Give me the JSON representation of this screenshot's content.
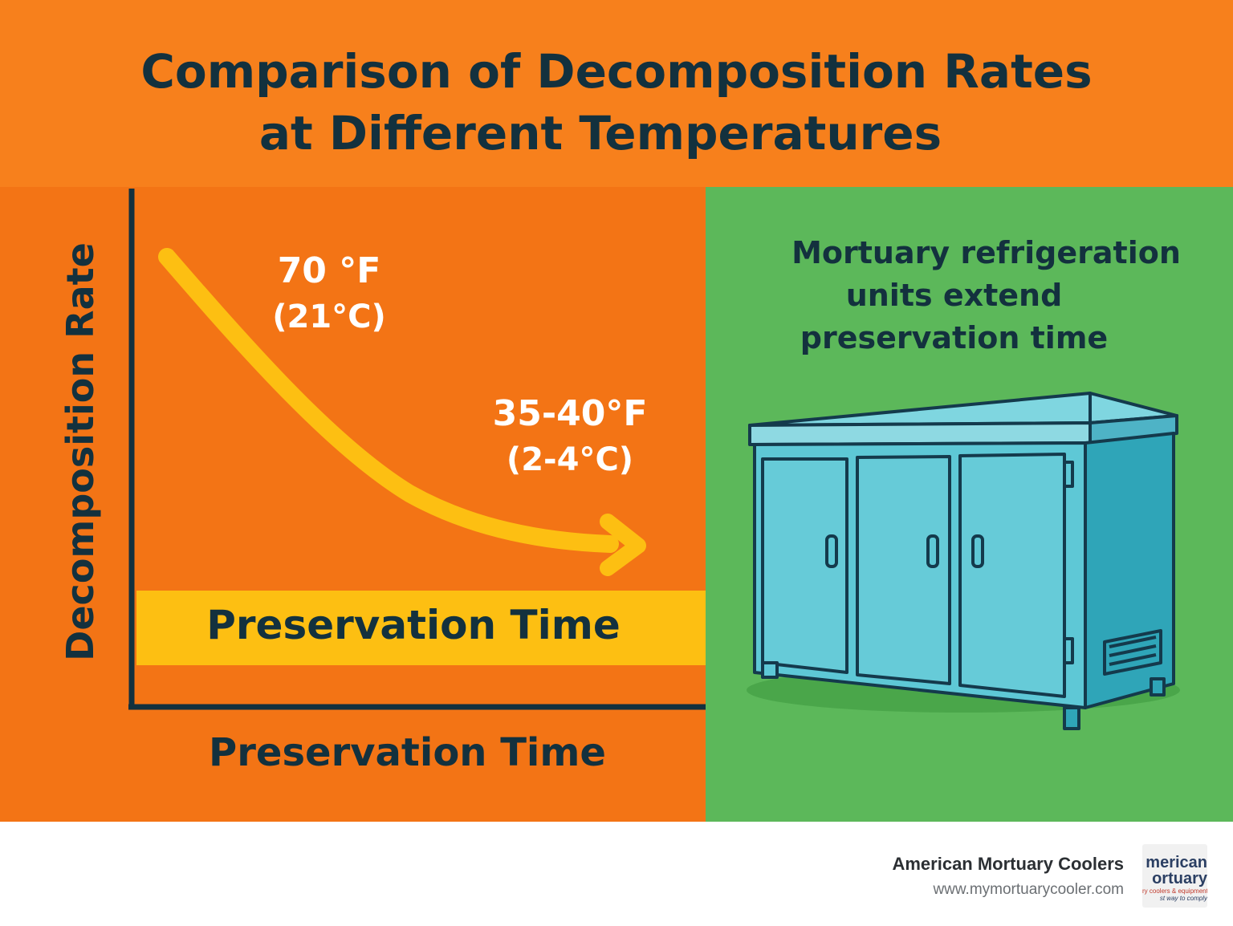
{
  "title": {
    "line1": "Comparison of Decomposition Rates",
    "line2": "at Different Temperatures"
  },
  "chart": {
    "y_axis_label": "Decomposition Rate",
    "x_axis_label": "Preservation Time",
    "band_label": "Preservation Time",
    "start_label_f": "70 °F",
    "start_label_c": "(21°C)",
    "end_label_f": "35-40°F",
    "end_label_c": "(2-4°C)"
  },
  "side_panel": {
    "text_line1": "Mortuary refrigeration",
    "text_line2": "units extend",
    "text_line3": "preservation time",
    "illustration": "refrigeration-unit-icon"
  },
  "footer": {
    "brand_name": "American Mortuary Coolers",
    "brand_url": "www.mymortuarycooler.com",
    "logo_line1": "merican",
    "logo_line2": "ortuary",
    "logo_line3": "ry coolers & equipment",
    "logo_line4": "st way to comply"
  },
  "colors": {
    "header_bg": "#f7801c",
    "chart_bg": "#f37415",
    "side_bg": "#5cb85a",
    "curve": "#fdbf12",
    "text_dark": "#13313e",
    "unit_body": "#5ec8d6"
  }
}
